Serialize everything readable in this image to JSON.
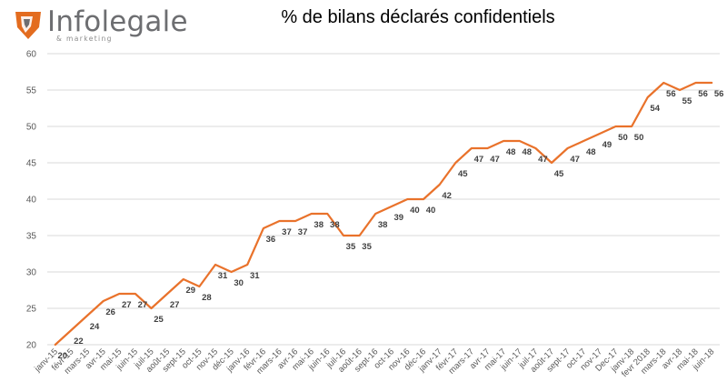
{
  "logo": {
    "name": "Infolegale",
    "tagline": "& marketing",
    "colors": {
      "orange": "#e36c1f",
      "gray": "#6d6e71"
    }
  },
  "chart_data": {
    "type": "line",
    "title": "% de bilans déclarés confidentiels",
    "xlabel": "",
    "ylabel": "",
    "ylim": [
      20,
      60
    ],
    "yticks": [
      20,
      25,
      30,
      35,
      40,
      45,
      50,
      55,
      60
    ],
    "grid": true,
    "legend": "none",
    "line_color": "#e9722b",
    "categories": [
      "janv-15",
      "févr-15",
      "mars-15",
      "avr-15",
      "mai-15",
      "juin-15",
      "juil-15",
      "août-15",
      "sept-15",
      "oct-15",
      "nov-15",
      "déc-15",
      "janv-16",
      "févr-16",
      "mars-16",
      "avr-16",
      "mai-16",
      "juin-16",
      "juil-16",
      "août-16",
      "sept-16",
      "oct-16",
      "nov-16",
      "déc-16",
      "janv-17",
      "févr-17",
      "mars-17",
      "avr-17",
      "mai-17",
      "juin-17",
      "juil-17",
      "août-17",
      "sept-17",
      "oct-17",
      "nov-17",
      "Dec-17",
      "janv-18",
      "fevr 2018",
      "mars-18",
      "avr-18",
      "mai-18",
      "juin-18"
    ],
    "series": [
      {
        "values": [
          20,
          22,
          24,
          26,
          27,
          27,
          25,
          27,
          29,
          28,
          31,
          30,
          31,
          36,
          37,
          37,
          38,
          38,
          35,
          35,
          38,
          39,
          40,
          40,
          42,
          45,
          47,
          47,
          48,
          48,
          47,
          45,
          47,
          48,
          49,
          50,
          50,
          54,
          56,
          55,
          56,
          56
        ]
      }
    ]
  }
}
